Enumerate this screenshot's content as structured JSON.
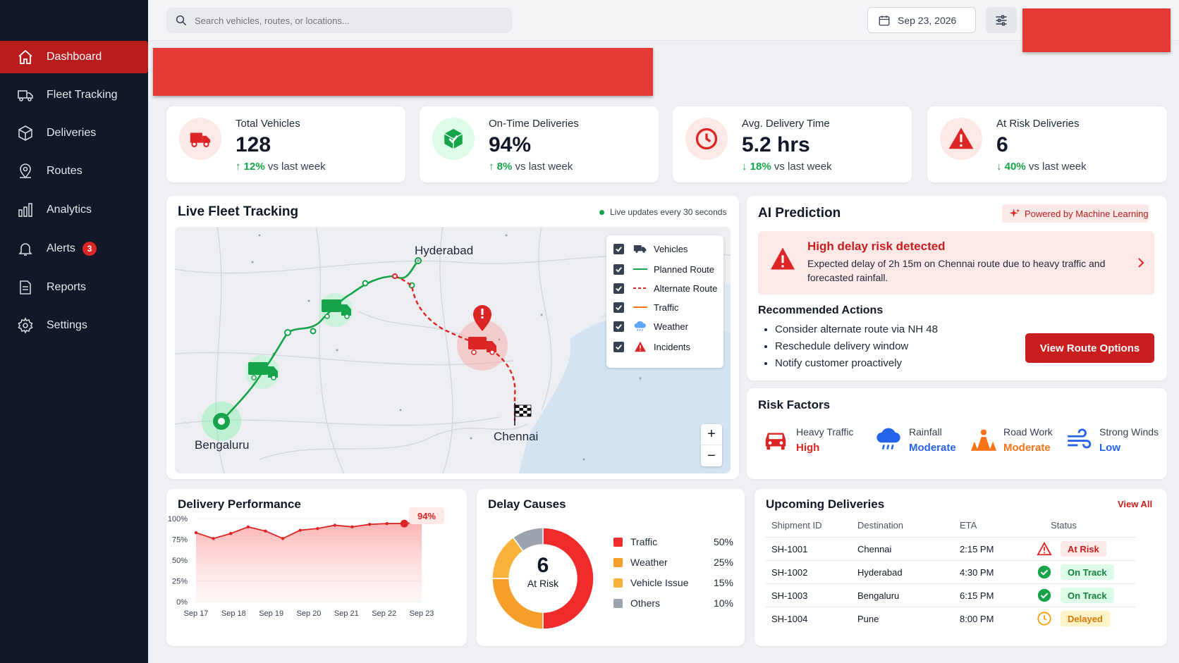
{
  "sidebar": {
    "items": [
      {
        "label": "Dashboard",
        "icon": "home-icon"
      },
      {
        "label": "Fleet Tracking",
        "icon": "truck-icon"
      },
      {
        "label": "Deliveries",
        "icon": "box-icon"
      },
      {
        "label": "Routes",
        "icon": "map-pin-icon"
      },
      {
        "label": "Analytics",
        "icon": "bar-chart-icon"
      },
      {
        "label": "Alerts",
        "icon": "bell-icon",
        "badge": "3"
      },
      {
        "label": "Reports",
        "icon": "document-icon"
      },
      {
        "label": "Settings",
        "icon": "gear-icon"
      }
    ]
  },
  "topbar": {
    "search_placeholder": "Search vehicles, routes, or locations...",
    "date": "Sep 23, 2026"
  },
  "kpis": [
    {
      "label": "Total Vehicles",
      "value": "128",
      "change": "↑ 12%",
      "suffix": "vs last week"
    },
    {
      "label": "On-Time Deliveries",
      "value": "94%",
      "change": "↑ 8%",
      "suffix": "vs last week"
    },
    {
      "label": "Avg. Delivery Time",
      "value": "5.2 hrs",
      "change": "↓ 18%",
      "suffix": "vs last week"
    },
    {
      "label": "At Risk Deliveries",
      "value": "6",
      "change": "↓ 40%",
      "suffix": "vs last week"
    }
  ],
  "fleet": {
    "title": "Live Fleet Tracking",
    "live_note": "Live updates every 30 seconds",
    "cities": {
      "hyderabad": "Hyderabad",
      "bengaluru": "Bengaluru",
      "chennai": "Chennai"
    },
    "legend": [
      "Vehicles",
      "Planned Route",
      "Alternate Route",
      "Traffic",
      "Weather",
      "Incidents"
    ],
    "zoom_in": "+",
    "zoom_out": "−"
  },
  "ai": {
    "title": "AI Prediction",
    "powered": "Powered by Machine Learning",
    "alert_title": "High delay risk detected",
    "alert_text": "Expected delay of 2h 15m on Chennai route due to heavy traffic and forecasted rainfall.",
    "rec_title": "Recommended Actions",
    "recs": [
      "Consider alternate route via NH 48",
      "Reschedule delivery window",
      "Notify customer proactively"
    ],
    "button": "View Route Options"
  },
  "risk": {
    "title": "Risk Factors",
    "items": [
      {
        "name": "Heavy Traffic",
        "level": "High",
        "color": "#dc2626"
      },
      {
        "name": "Rainfall",
        "level": "Moderate",
        "color": "#2563eb"
      },
      {
        "name": "Road Work",
        "level": "Moderate",
        "color": "#f97316"
      },
      {
        "name": "Strong Winds",
        "level": "Low",
        "color": "#2563eb"
      }
    ]
  },
  "performance": {
    "title": "Delivery Performance",
    "callout": "94%"
  },
  "delay": {
    "title": "Delay Causes",
    "center_value": "6",
    "center_label": "At Risk"
  },
  "upcoming": {
    "title": "Upcoming Deliveries",
    "view_all": "View All",
    "headers": [
      "Shipment ID",
      "Destination",
      "ETA",
      "Status"
    ],
    "rows": [
      {
        "id": "SH-1001",
        "dest": "Chennai",
        "eta": "2:15 PM",
        "status": "At Risk"
      },
      {
        "id": "SH-1002",
        "dest": "Hyderabad",
        "eta": "4:30 PM",
        "status": "On Track"
      },
      {
        "id": "SH-1003",
        "dest": "Bengaluru",
        "eta": "6:15 PM",
        "status": "On Track"
      },
      {
        "id": "SH-1004",
        "dest": "Pune",
        "eta": "8:00 PM",
        "status": "Delayed"
      }
    ]
  },
  "chart_data": [
    {
      "type": "area",
      "title": "Delivery Performance",
      "categories": [
        "Sep 17",
        "Sep 18",
        "Sep 19",
        "Sep 20",
        "Sep 21",
        "Sep 22",
        "Sep 23"
      ],
      "x": [
        "Sep 17",
        "",
        "Sep 18",
        "",
        "Sep 19",
        "",
        "Sep 20",
        "",
        "Sep 21",
        "",
        "Sep 22",
        "",
        "Sep 23",
        ""
      ],
      "values": [
        83,
        76,
        82,
        90,
        85,
        76,
        86,
        88,
        92,
        90,
        93,
        94,
        94,
        96
      ],
      "yticks": [
        "100%",
        "75%",
        "50%",
        "25%",
        "0%"
      ],
      "ylim": [
        0,
        100
      ],
      "color": "#dc2626"
    },
    {
      "type": "pie",
      "title": "Delay Causes",
      "categories": [
        "Traffic",
        "Weather",
        "Vehicle Issue",
        "Others"
      ],
      "values": [
        50,
        25,
        15,
        10
      ],
      "labels": [
        "50%",
        "25%",
        "15%",
        "10%"
      ],
      "colors": [
        "#ef2b2b",
        "#f59e2a",
        "#f8b23c",
        "#9ca3af"
      ]
    }
  ]
}
